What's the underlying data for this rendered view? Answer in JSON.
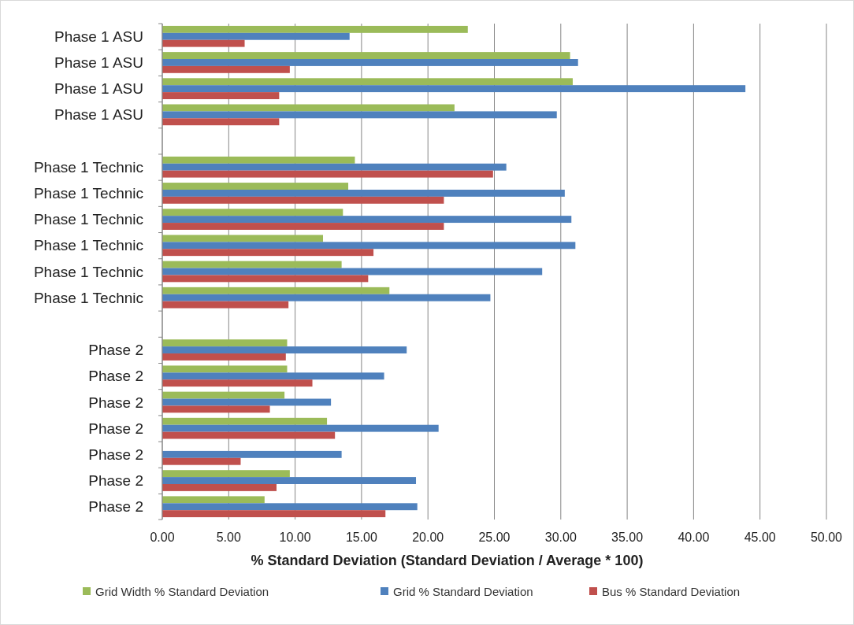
{
  "chart_data": {
    "type": "bar",
    "orientation": "horizontal",
    "xlabel": "% Standard Deviation (Standard Deviation / Average * 100)",
    "categories": [
      "Phase 1 ASU",
      "Phase 1 ASU",
      "Phase 1 ASU",
      "Phase 1 ASU",
      null,
      "Phase 1 Technic",
      "Phase 1 Technic",
      "Phase 1 Technic",
      "Phase 1 Technic",
      "Phase 1 Technic",
      "Phase 1 Technic",
      null,
      "Phase 2",
      "Phase 2",
      "Phase 2",
      "Phase 2",
      "Phase 2",
      "Phase 2",
      "Phase 2"
    ],
    "series": [
      {
        "name": "Grid Width % Standard Deviation",
        "color": "#9bbb59",
        "values": [
          23.0,
          30.7,
          30.9,
          22.0,
          null,
          14.5,
          14.0,
          13.6,
          12.1,
          13.5,
          17.1,
          null,
          9.4,
          9.4,
          9.2,
          12.4,
          null,
          9.6,
          7.7
        ]
      },
      {
        "name": "Grid % Standard Deviation",
        "color": "#4f81bd",
        "values": [
          14.1,
          31.3,
          43.9,
          29.7,
          null,
          25.9,
          30.3,
          30.8,
          31.1,
          28.6,
          24.7,
          null,
          18.4,
          16.7,
          12.7,
          20.8,
          13.5,
          19.1,
          19.2
        ]
      },
      {
        "name": "Bus % Standard Deviation",
        "color": "#c0504d",
        "values": [
          6.2,
          9.6,
          8.8,
          8.8,
          null,
          24.9,
          21.2,
          21.2,
          15.9,
          15.5,
          9.5,
          null,
          9.3,
          11.3,
          8.1,
          13.0,
          5.9,
          8.6,
          16.8
        ]
      }
    ],
    "xlim": [
      0,
      50
    ],
    "xticks": [
      {
        "value": 0,
        "label": "0.00"
      },
      {
        "value": 5,
        "label": "5.00"
      },
      {
        "value": 10,
        "label": "10.00"
      },
      {
        "value": 15,
        "label": "15.00"
      },
      {
        "value": 20,
        "label": "20.00"
      },
      {
        "value": 25,
        "label": "25.00"
      },
      {
        "value": 30,
        "label": "30.00"
      },
      {
        "value": 35,
        "label": "35.00"
      },
      {
        "value": 40,
        "label": "40.00"
      },
      {
        "value": 45,
        "label": "45.00"
      },
      {
        "value": 50,
        "label": "50.00"
      }
    ],
    "grid": "x",
    "legend": "bottom"
  }
}
